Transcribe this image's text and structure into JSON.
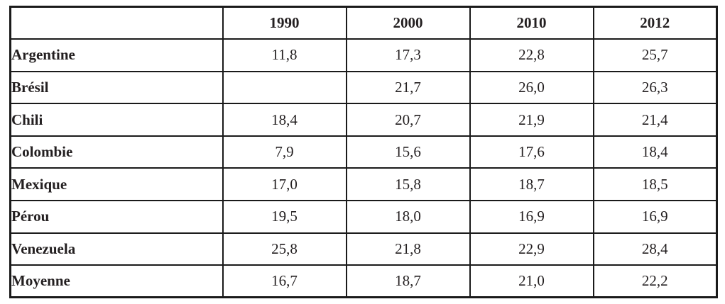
{
  "table": {
    "columns": [
      "",
      "1990",
      "2000",
      "2010",
      "2012"
    ],
    "rows": [
      {
        "label": "Argentine",
        "values": [
          "11,8",
          "17,3",
          "22,8",
          "25,7"
        ]
      },
      {
        "label": "Brésil",
        "values": [
          "",
          "21,7",
          "26,0",
          "26,3"
        ]
      },
      {
        "label": "Chili",
        "values": [
          "18,4",
          "20,7",
          "21,9",
          "21,4"
        ]
      },
      {
        "label": "Colombie",
        "values": [
          "7,9",
          "15,6",
          "17,6",
          "18,4"
        ]
      },
      {
        "label": "Mexique",
        "values": [
          "17,0",
          "15,8",
          "18,7",
          "18,5"
        ]
      },
      {
        "label": "Pérou",
        "values": [
          "19,5",
          "18,0",
          "16,9",
          "16,9"
        ]
      },
      {
        "label": "Venezuela",
        "values": [
          "25,8",
          "21,8",
          "22,9",
          "28,4"
        ]
      },
      {
        "label": "Moyenne",
        "values": [
          "16,7",
          "18,7",
          "21,0",
          "22,2"
        ]
      }
    ],
    "style": {
      "border_color": "#1a1a1a",
      "text_color": "#231f20",
      "background": "#ffffff"
    }
  },
  "chart_data": {
    "type": "table",
    "title": "",
    "categories": [
      "1990",
      "2000",
      "2010",
      "2012"
    ],
    "series": [
      {
        "name": "Argentine",
        "values": [
          11.8,
          17.3,
          22.8,
          25.7
        ]
      },
      {
        "name": "Brésil",
        "values": [
          null,
          21.7,
          26.0,
          26.3
        ]
      },
      {
        "name": "Chili",
        "values": [
          18.4,
          20.7,
          21.9,
          21.4
        ]
      },
      {
        "name": "Colombie",
        "values": [
          7.9,
          15.6,
          17.6,
          18.4
        ]
      },
      {
        "name": "Mexique",
        "values": [
          17.0,
          15.8,
          18.7,
          18.5
        ]
      },
      {
        "name": "Pérou",
        "values": [
          19.5,
          18.0,
          16.9,
          16.9
        ]
      },
      {
        "name": "Venezuela",
        "values": [
          25.8,
          21.8,
          22.9,
          28.4
        ]
      },
      {
        "name": "Moyenne",
        "values": [
          16.7,
          18.7,
          21.0,
          22.2
        ]
      }
    ],
    "layout_hints": {
      "decimal_separator": ",",
      "first_column": "country (row labels, bold)",
      "empty_cells": [
        [
          "Brésil",
          "1990"
        ]
      ]
    }
  }
}
